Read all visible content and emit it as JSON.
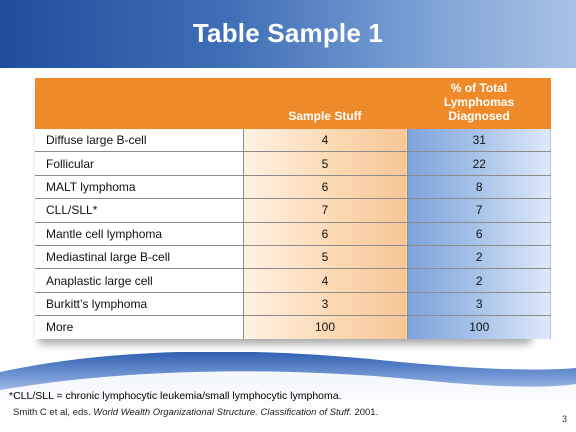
{
  "slide": {
    "title": "Table Sample 1",
    "page_number": "3"
  },
  "table": {
    "columns": [
      "",
      "Sample Stuff",
      "% of Total Lymphomas Diagnosed"
    ],
    "header_b_lines": [
      "% of Total",
      "Lymphomas",
      "Diagnosed"
    ],
    "rows": [
      {
        "name": "Diffuse large B-cell",
        "a": "4",
        "b": "31"
      },
      {
        "name": "Follicular",
        "a": "5",
        "b": "22"
      },
      {
        "name": "MALT lymphoma",
        "a": "6",
        "b": "8"
      },
      {
        "name": "CLL/SLL*",
        "a": "7",
        "b": "7"
      },
      {
        "name": "Mantle cell lymphoma",
        "a": "6",
        "b": "6"
      },
      {
        "name": "Mediastinal large B-cell",
        "a": "5",
        "b": "2"
      },
      {
        "name": "Anaplastic large cell",
        "a": "4",
        "b": "2"
      },
      {
        "name": "Burkitt’s lymphoma",
        "a": "3",
        "b": "3"
      },
      {
        "name": "More",
        "a": "100",
        "b": "100"
      }
    ]
  },
  "footnotes": {
    "abbrev": "*CLL/SLL = chronic lymphocytic leukemia/small lymphocytic lymphoma.",
    "source_prefix": "Smith C et al, eds. ",
    "source_title": "World Wealth Organizational Structure. Classification of Stuff.",
    "source_year": " 2001."
  },
  "colors": {
    "header_blue": "#1f4f9c",
    "table_header_orange": "#ef8a2a",
    "col_a_fill": "#f7c696",
    "col_b_fill": "#7ea3dc"
  }
}
